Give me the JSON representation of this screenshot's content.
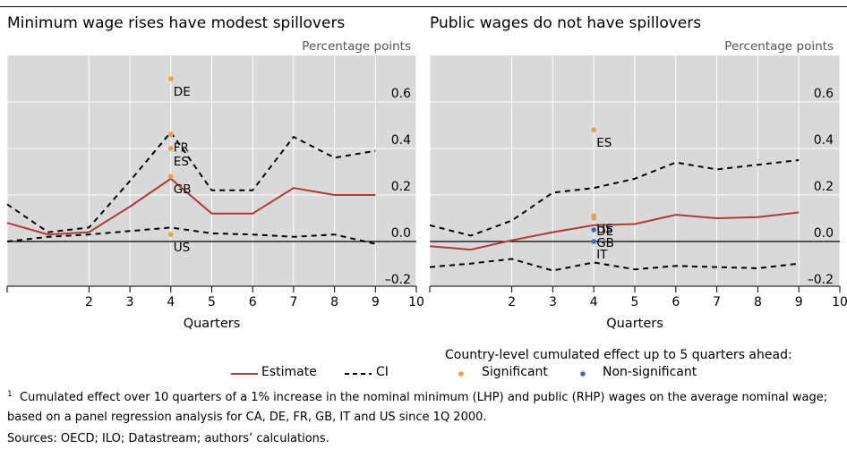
{
  "colors": {
    "estimate": "#b03a36",
    "ci": "#000000",
    "significant": "#e8a33d",
    "nonsignificant": "#3a6db8",
    "panel_bg": "#d9d9d9",
    "grid": "#ffffff"
  },
  "chart_data": [
    {
      "type": "line",
      "title": "Minimum wage rises have modest spillovers",
      "ylabel": "Percentage points",
      "xlabel": "Quarters",
      "xlim": [
        0,
        10
      ],
      "ylim": [
        -0.2,
        0.8
      ],
      "xticks": [
        2,
        3,
        4,
        5,
        6,
        7,
        8,
        9,
        10
      ],
      "yticks": [
        0.6,
        0.4,
        0.2,
        0.0,
        -0.2
      ],
      "ytick_labels": [
        "0.6",
        "0.4",
        "0.2",
        "0.0",
        "–0.2"
      ],
      "series": [
        {
          "name": "Estimate",
          "style": "solid",
          "x": [
            0,
            1,
            2,
            3,
            4,
            5,
            6,
            7,
            8,
            9
          ],
          "y": [
            0.08,
            0.03,
            0.04,
            0.15,
            0.27,
            0.12,
            0.12,
            0.23,
            0.2,
            0.2
          ]
        },
        {
          "name": "CI",
          "style": "dashed",
          "x": [
            0,
            1,
            2,
            3,
            4,
            5,
            6,
            7,
            8,
            9
          ],
          "y": [
            0.16,
            0.04,
            0.06,
            0.26,
            0.47,
            0.22,
            0.22,
            0.45,
            0.36,
            0.39
          ]
        },
        {
          "name": "CI",
          "style": "dashed",
          "x": [
            0,
            1,
            2,
            3,
            4,
            5,
            6,
            7,
            8,
            9
          ],
          "y": [
            0.0,
            0.02,
            0.03,
            0.045,
            0.06,
            0.035,
            0.03,
            0.02,
            0.03,
            -0.01
          ]
        }
      ],
      "points": [
        {
          "label": "DE",
          "x": 4,
          "y": 0.7,
          "significant": true
        },
        {
          "label": "FR",
          "x": 4,
          "y": 0.46,
          "significant": true
        },
        {
          "label": "ES",
          "x": 4,
          "y": 0.4,
          "significant": true
        },
        {
          "label": "GB",
          "x": 4,
          "y": 0.28,
          "significant": true
        },
        {
          "label": "US",
          "x": 4,
          "y": 0.03,
          "significant": true
        }
      ]
    },
    {
      "type": "line",
      "title": "Public wages do not have spillovers",
      "ylabel": "Percentage points",
      "xlabel": "Quarters",
      "xlim": [
        0,
        10
      ],
      "ylim": [
        -0.2,
        0.8
      ],
      "xticks": [
        2,
        3,
        4,
        5,
        6,
        7,
        8,
        9,
        10
      ],
      "yticks": [
        0.6,
        0.4,
        0.2,
        0.0,
        -0.2
      ],
      "ytick_labels": [
        "0.6",
        "0.4",
        "0.2",
        "0.0",
        "–0.2"
      ],
      "series": [
        {
          "name": "Estimate",
          "style": "solid",
          "x": [
            0,
            1,
            2,
            3,
            4,
            5,
            6,
            7,
            8,
            9
          ],
          "y": [
            -0.02,
            -0.035,
            0.005,
            0.04,
            0.07,
            0.075,
            0.115,
            0.1,
            0.105,
            0.125
          ]
        },
        {
          "name": "CI",
          "style": "dashed",
          "x": [
            0,
            1,
            2,
            3,
            4,
            5,
            6,
            7,
            8,
            9
          ],
          "y": [
            0.07,
            0.025,
            0.09,
            0.21,
            0.23,
            0.27,
            0.34,
            0.31,
            0.33,
            0.35
          ]
        },
        {
          "name": "CI",
          "style": "dashed",
          "x": [
            0,
            1,
            2,
            3,
            4,
            5,
            6,
            7,
            8,
            9
          ],
          "y": [
            -0.11,
            -0.095,
            -0.075,
            -0.125,
            -0.09,
            -0.12,
            -0.105,
            -0.11,
            -0.115,
            -0.095
          ]
        }
      ],
      "points": [
        {
          "label": "ES",
          "x": 4,
          "y": 0.48,
          "significant": true
        },
        {
          "label": "US",
          "x": 4,
          "y": 0.11,
          "significant": true
        },
        {
          "label": "DE",
          "x": 4,
          "y": 0.1,
          "significant": true
        },
        {
          "label": "GB",
          "x": 4,
          "y": 0.05,
          "significant": false
        },
        {
          "label": "IT",
          "x": 4,
          "y": 0.0,
          "significant": false
        }
      ]
    }
  ],
  "legend": {
    "estimate": "Estimate",
    "ci": "CI",
    "country_title": "Country-level cumulated effect up to 5 quarters ahead:",
    "significant": "Significant",
    "nonsignificant": "Non-significant"
  },
  "footnote": {
    "marker": "1",
    "line1": "Cumulated effect over 10 quarters of a 1% increase in the nominal minimum (LHP) and public (RHP) wages on the average nominal wage;",
    "line2": "based on a panel regression analysis for CA, DE, FR, GB, IT and US since 1Q 2000.",
    "sources": "Sources: OECD; ILO; Datastream; authors’ calculations."
  }
}
